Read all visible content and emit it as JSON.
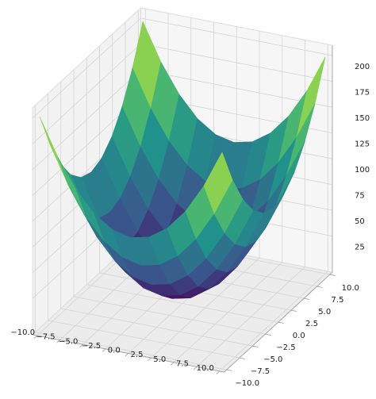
{
  "chart_data": {
    "type": "surface",
    "colormap": "viridis",
    "grid": true,
    "x": [
      -10,
      -8,
      -6,
      -4,
      -2,
      0,
      2,
      4,
      6,
      8,
      10
    ],
    "y": [
      -10,
      -8,
      -6,
      -4,
      -2,
      0,
      2,
      4,
      6,
      8,
      10
    ],
    "z": [
      [
        200,
        164,
        136,
        116,
        104,
        100,
        104,
        116,
        136,
        164,
        200
      ],
      [
        164,
        128,
        100,
        80,
        68,
        64,
        68,
        80,
        100,
        128,
        164
      ],
      [
        136,
        100,
        72,
        52,
        40,
        36,
        40,
        52,
        72,
        100,
        136
      ],
      [
        116,
        80,
        52,
        32,
        20,
        16,
        20,
        32,
        52,
        80,
        116
      ],
      [
        104,
        68,
        40,
        20,
        8,
        4,
        8,
        20,
        40,
        68,
        104
      ],
      [
        100,
        64,
        36,
        16,
        4,
        0,
        4,
        16,
        36,
        64,
        100
      ],
      [
        104,
        68,
        40,
        20,
        8,
        4,
        8,
        20,
        40,
        68,
        104
      ],
      [
        116,
        80,
        52,
        32,
        20,
        16,
        20,
        32,
        52,
        80,
        116
      ],
      [
        136,
        100,
        72,
        52,
        40,
        36,
        40,
        52,
        72,
        100,
        136
      ],
      [
        164,
        128,
        100,
        80,
        68,
        64,
        68,
        80,
        100,
        128,
        164
      ],
      [
        200,
        164,
        136,
        116,
        104,
        100,
        104,
        116,
        136,
        164,
        200
      ]
    ],
    "xlim": [
      -10.5,
      10.5
    ],
    "ylim": [
      -10.5,
      10.5
    ],
    "zlim": [
      -10,
      210
    ],
    "xticks": [
      {
        "value": -10,
        "label": "−10.0"
      },
      {
        "value": -7.5,
        "label": "−7.5"
      },
      {
        "value": -5,
        "label": "−5.0"
      },
      {
        "value": -2.5,
        "label": "−2.5"
      },
      {
        "value": 0,
        "label": "0.0"
      },
      {
        "value": 2.5,
        "label": "2.5"
      },
      {
        "value": 5,
        "label": "5.0"
      },
      {
        "value": 7.5,
        "label": "7.5"
      },
      {
        "value": 10,
        "label": "10.0"
      }
    ],
    "yticks": [
      {
        "value": -10,
        "label": "−10.0"
      },
      {
        "value": -7.5,
        "label": "−7.5"
      },
      {
        "value": -5,
        "label": "−5.0"
      },
      {
        "value": -2.5,
        "label": "−2.5"
      },
      {
        "value": 0,
        "label": "0.0"
      },
      {
        "value": 2.5,
        "label": "2.5"
      },
      {
        "value": 5,
        "label": "5.0"
      },
      {
        "value": 7.5,
        "label": "7.5"
      },
      {
        "value": 10,
        "label": "10.0"
      }
    ],
    "zticks": [
      25,
      50,
      75,
      100,
      125,
      150,
      175,
      200
    ]
  }
}
